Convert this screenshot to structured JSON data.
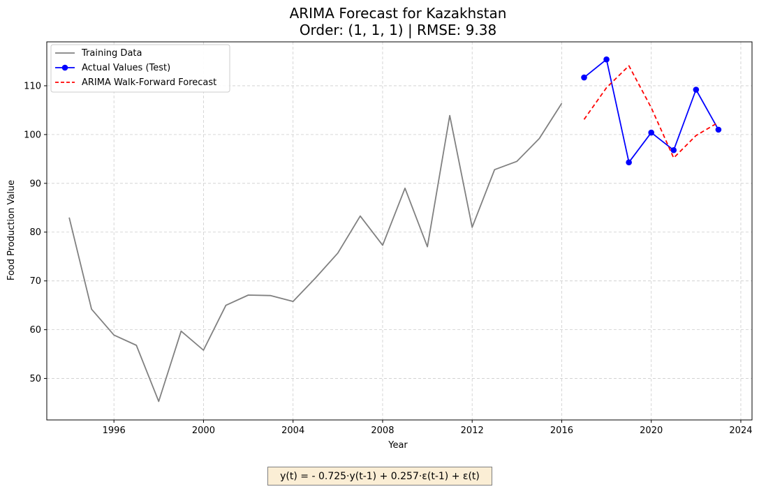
{
  "chart_data": {
    "type": "line",
    "title": "ARIMA Forecast for Kazakhstan",
    "subtitle": "Order: (1, 1, 1) | RMSE: 9.38",
    "xlabel": "Year",
    "ylabel": "Food Production Value",
    "xlim": [
      1993,
      2024.5
    ],
    "ylim": [
      41.5,
      119
    ],
    "xticks": [
      1996,
      2000,
      2004,
      2008,
      2012,
      2016,
      2020,
      2024
    ],
    "yticks": [
      50,
      60,
      70,
      80,
      90,
      100,
      110
    ],
    "grid": true,
    "legend_position": "top-left",
    "series": [
      {
        "name": "Training Data",
        "color": "#808080",
        "style": "solid",
        "marker": "none",
        "x": [
          1994,
          1995,
          1996,
          1997,
          1998,
          1999,
          2000,
          2001,
          2002,
          2003,
          2004,
          2005,
          2006,
          2007,
          2008,
          2009,
          2010,
          2011,
          2012,
          2013,
          2014,
          2015,
          2016
        ],
        "y": [
          83.0,
          64.2,
          58.9,
          56.8,
          45.3,
          59.7,
          55.8,
          65.0,
          67.1,
          67.0,
          65.8,
          70.6,
          75.7,
          83.3,
          77.3,
          89.0,
          77.0,
          103.9,
          81.0,
          92.8,
          94.5,
          99.2,
          106.4
        ]
      },
      {
        "name": "Actual Values (Test)",
        "color": "#0000ff",
        "style": "solid",
        "marker": "circle",
        "x": [
          2017,
          2018,
          2019,
          2020,
          2021,
          2022,
          2023
        ],
        "y": [
          111.7,
          115.4,
          94.3,
          100.4,
          96.8,
          109.2,
          101.0
        ]
      },
      {
        "name": "ARIMA Walk-Forward Forecast",
        "color": "#ff0000",
        "style": "dashed",
        "marker": "none",
        "x": [
          2017,
          2018,
          2019,
          2020,
          2021,
          2022,
          2023
        ],
        "y": [
          103.1,
          109.6,
          114.1,
          105.5,
          95.2,
          99.8,
          102.5
        ]
      }
    ],
    "annotation": "y(t) = - 0.725·y(t-1) + 0.257·ε(t-1) + ε(t)"
  }
}
